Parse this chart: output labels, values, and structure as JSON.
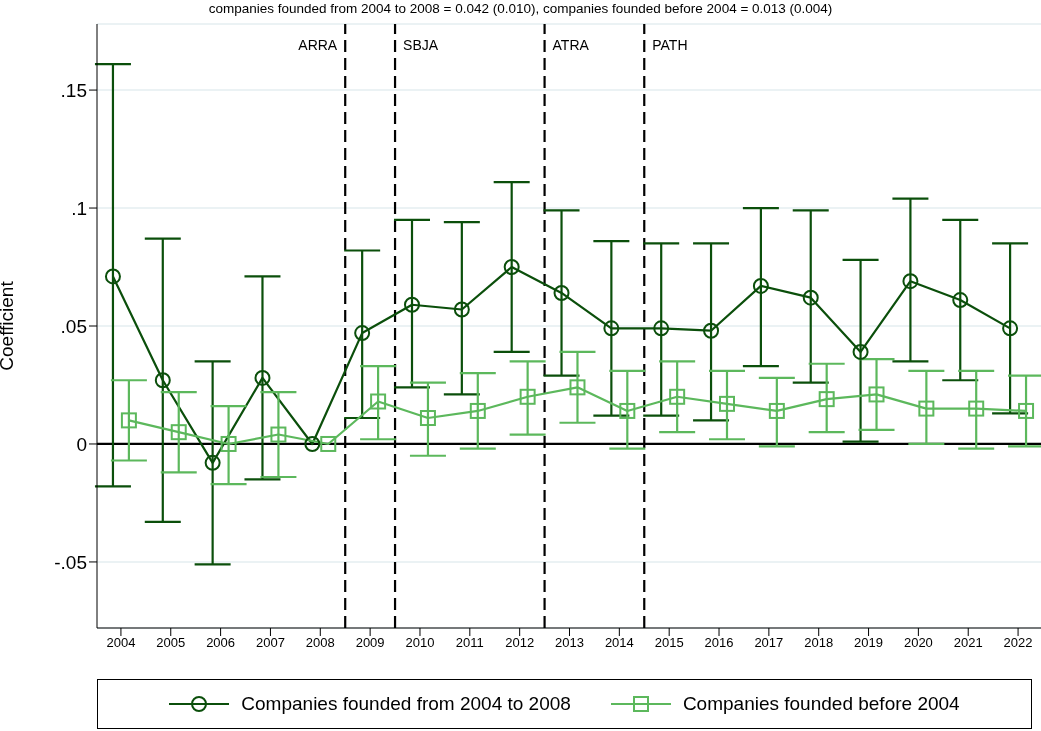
{
  "chart_data": {
    "type": "line",
    "title": "companies founded from 2004 to 2008 = 0.042 (0.010), companies founded before 2004 = 0.013 (0.004)",
    "ylabel": "Coefficient",
    "xlim": [
      2003.52,
      2022.46
    ],
    "xticks": [
      2004,
      2005,
      2006,
      2007,
      2008,
      2009,
      2010,
      2011,
      2012,
      2013,
      2014,
      2015,
      2016,
      2017,
      2018,
      2019,
      2020,
      2021,
      2022
    ],
    "ylim": [
      -0.078,
      0.178
    ],
    "yticks": [
      {
        "value": -0.05,
        "label": "-.05"
      },
      0,
      {
        "value": 0.05,
        "label": ".05"
      },
      {
        "value": 0.1,
        "label": ".1"
      },
      {
        "value": 0.15,
        "label": ".15"
      }
    ],
    "grid": "y",
    "legend": "bottom",
    "line_style": "solid",
    "ref_lines": [
      {
        "axis": "y",
        "value": 0,
        "color": "#000000",
        "line_style": "solid"
      },
      {
        "axis": "x",
        "value": 2008.5,
        "label": "ARRA",
        "color": "#000000",
        "line_style": "dashed"
      },
      {
        "axis": "x",
        "value": 2009.5,
        "label": "SBJA",
        "color": "#000000",
        "line_style": "dashed"
      },
      {
        "axis": "x",
        "value": 2012.5,
        "label": "ATRA",
        "color": "#000000",
        "line_style": "dashed"
      },
      {
        "axis": "x",
        "value": 2014.5,
        "label": "PATH",
        "color": "#000000",
        "line_style": "dashed"
      }
    ],
    "series": [
      {
        "name": "Companies founded from 2004 to 2008",
        "color": "#0b4f0b",
        "marker": "circle",
        "x": [
          2003.84,
          2004.84,
          2005.84,
          2006.84,
          2007.84,
          2008.84,
          2009.84,
          2010.84,
          2011.84,
          2012.84,
          2013.84,
          2014.84,
          2015.84,
          2016.84,
          2017.84,
          2018.84,
          2019.84,
          2020.84,
          2021.84
        ],
        "values": [
          0.071,
          0.027,
          -0.008,
          0.028,
          0,
          0.047,
          0.059,
          0.057,
          0.075,
          0.064,
          0.049,
          0.049,
          0.048,
          0.067,
          0.062,
          0.039,
          0.069,
          0.061,
          0.049
        ],
        "errors": [
          [
            -0.018,
            0.161
          ],
          [
            -0.033,
            0.087
          ],
          [
            -0.051,
            0.035
          ],
          [
            -0.015,
            0.071
          ],
          null,
          [
            0.011,
            0.082
          ],
          [
            0.024,
            0.095
          ],
          [
            0.021,
            0.094
          ],
          [
            0.039,
            0.111
          ],
          [
            0.029,
            0.099
          ],
          [
            0.012,
            0.086
          ],
          [
            0.012,
            0.085
          ],
          [
            0.01,
            0.085
          ],
          [
            0.033,
            0.1
          ],
          [
            0.026,
            0.099
          ],
          [
            0.001,
            0.078
          ],
          [
            0.035,
            0.104
          ],
          [
            0.027,
            0.095
          ],
          [
            0.013,
            0.085
          ]
        ]
      },
      {
        "name": "Companies founded before 2004",
        "color": "#5cb85c",
        "marker": "square",
        "x": [
          2004.16,
          2005.16,
          2006.16,
          2007.16,
          2008.16,
          2009.16,
          2010.16,
          2011.16,
          2012.16,
          2013.16,
          2014.16,
          2015.16,
          2016.16,
          2017.16,
          2018.16,
          2019.16,
          2020.16,
          2021.16,
          2022.16
        ],
        "values": [
          0.01,
          0.005,
          0,
          0.004,
          0,
          0.018,
          0.011,
          0.014,
          0.02,
          0.024,
          0.014,
          0.02,
          0.017,
          0.014,
          0.019,
          0.021,
          0.015,
          0.015,
          0.014
        ],
        "errors": [
          [
            -0.007,
            0.027
          ],
          [
            -0.012,
            0.022
          ],
          [
            -0.017,
            0.016
          ],
          [
            -0.014,
            0.022
          ],
          null,
          [
            0.002,
            0.033
          ],
          [
            -0.005,
            0.026
          ],
          [
            -0.002,
            0.03
          ],
          [
            0.004,
            0.035
          ],
          [
            0.009,
            0.039
          ],
          [
            -0.002,
            0.031
          ],
          [
            0.005,
            0.035
          ],
          [
            0.002,
            0.031
          ],
          [
            -0.001,
            0.028
          ],
          [
            0.005,
            0.034
          ],
          [
            0.006,
            0.036
          ],
          [
            0,
            0.031
          ],
          [
            -0.002,
            0.031
          ],
          [
            -0.001,
            0.029
          ]
        ]
      }
    ]
  }
}
